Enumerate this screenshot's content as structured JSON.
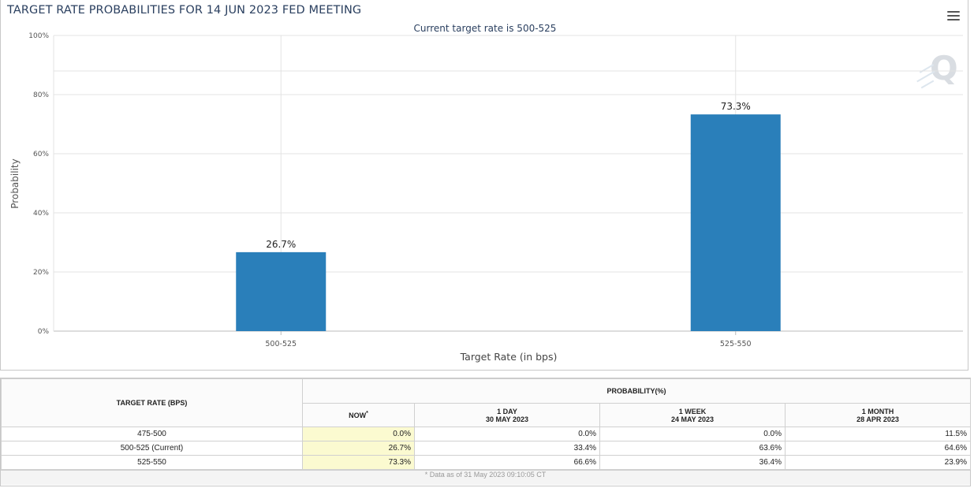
{
  "chart_data": {
    "type": "bar",
    "title": "TARGET RATE PROBABILITIES FOR 14 JUN 2023 FED MEETING",
    "subtitle": "Current target rate is 500-525",
    "xlabel": "Target Rate (in bps)",
    "ylabel": "Probability",
    "categories": [
      "500-525",
      "525-550"
    ],
    "values": [
      26.7,
      73.3
    ],
    "value_labels": [
      "26.7%",
      "73.3%"
    ],
    "ylim": [
      0,
      100
    ],
    "yticks": [
      0,
      20,
      40,
      60,
      80,
      100
    ],
    "ytick_labels": [
      "0%",
      "20%",
      "40%",
      "60%",
      "80%",
      "100%"
    ],
    "bar_color": "#2a7fba",
    "grid": true,
    "legend": "none"
  },
  "table": {
    "rate_header": "TARGET RATE (BPS)",
    "prob_header": "PROBABILITY(%)",
    "columns": [
      {
        "line1": "NOW",
        "line2": "",
        "star": "*"
      },
      {
        "line1": "1 DAY",
        "line2": "30 MAY 2023",
        "star": ""
      },
      {
        "line1": "1 WEEK",
        "line2": "24 MAY 2023",
        "star": ""
      },
      {
        "line1": "1 MONTH",
        "line2": "28 APR 2023",
        "star": ""
      }
    ],
    "rows": [
      {
        "rate": "475-500",
        "values": [
          "0.0%",
          "0.0%",
          "0.0%",
          "11.5%"
        ]
      },
      {
        "rate": "500-525 (Current)",
        "values": [
          "26.7%",
          "33.4%",
          "63.6%",
          "64.6%"
        ]
      },
      {
        "rate": "525-550",
        "values": [
          "73.3%",
          "66.6%",
          "36.4%",
          "23.9%"
        ]
      }
    ],
    "footnote": "* Data as of 31 May 2023 09:10:05 CT"
  }
}
